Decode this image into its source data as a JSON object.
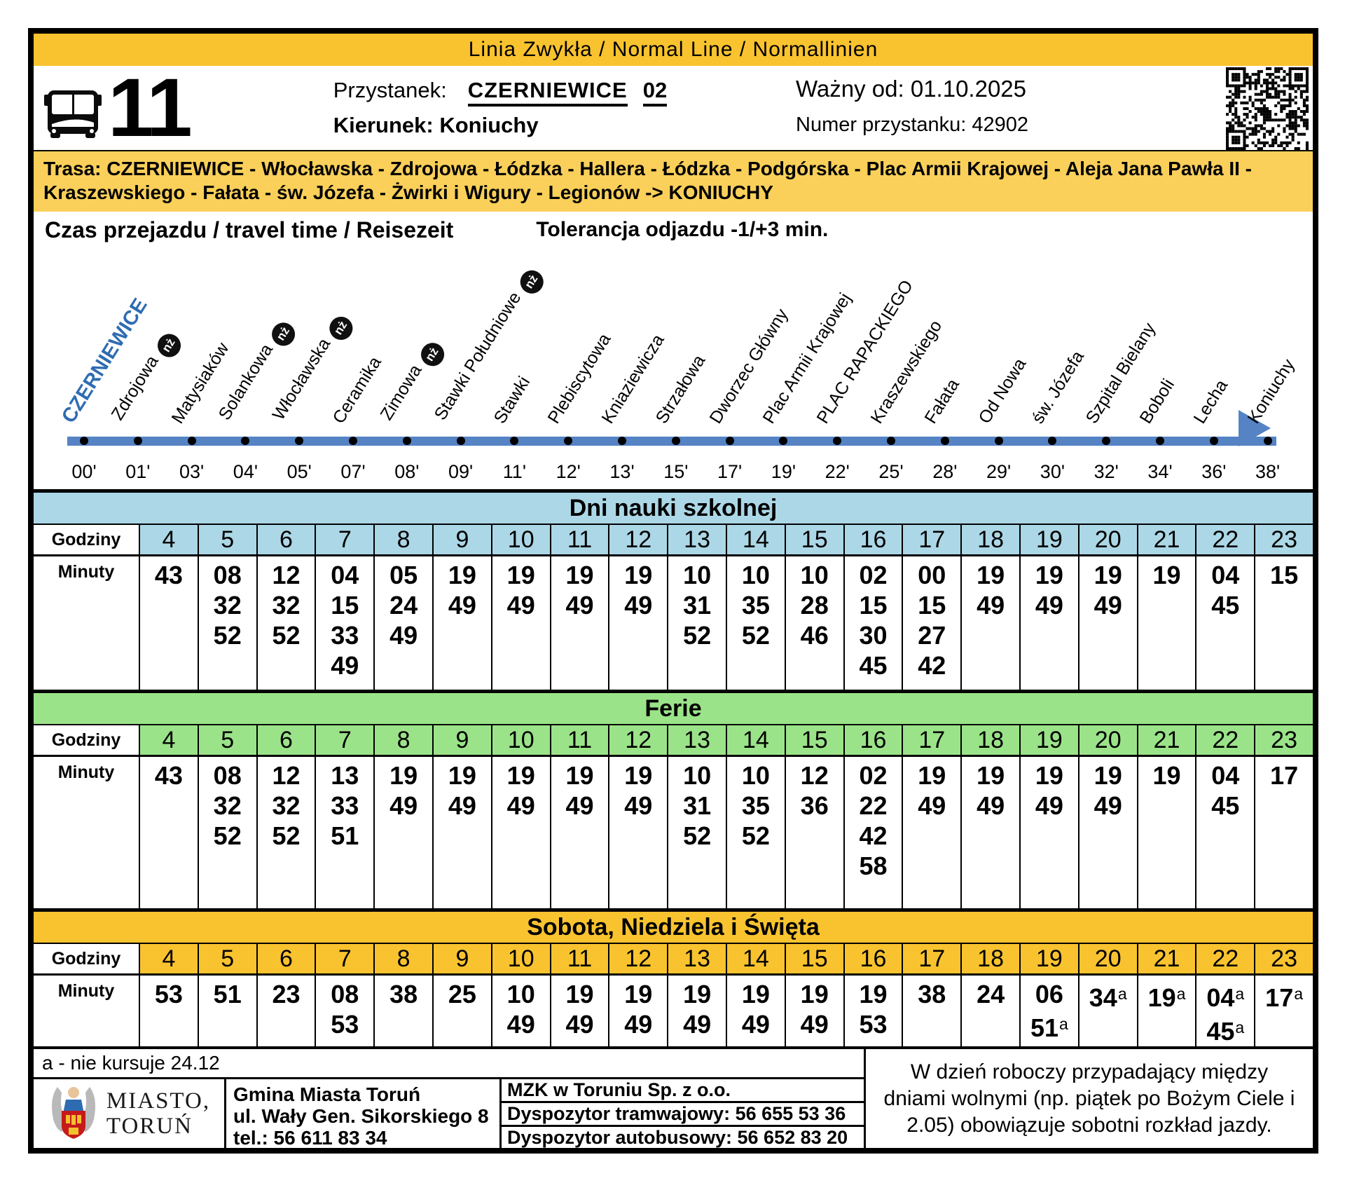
{
  "header": {
    "line_type": "Linia Zwykła  / Normal Line /  Normallinien",
    "line_number": "11",
    "stop_label": "Przystanek:",
    "stop_name": "CZERNIEWICE",
    "stop_platform": "02",
    "direction": "Kierunek: Koniuchy",
    "valid_from": "Ważny od: 01.10.2025",
    "stop_number": "Numer przystanku: 42902"
  },
  "route": {
    "text": "Trasa: CZERNIEWICE - Włocławska - Zdrojowa - Łódzka - Hallera - Łódzka - Podgórska - Plac Armii Krajowej - Aleja Jana Pawła II - Kraszewskiego - Fałata - św. Józefa - Żwirki i Wigury - Legionów -> KONIUCHY"
  },
  "diagram": {
    "title": "Czas przejazdu / travel time / Reisezeit",
    "tolerance": "Tolerancja odjazdu -1/+3 min.",
    "stops": [
      {
        "name": "CZERNIEWICE",
        "minute": "00'",
        "nz": false,
        "terminal": true
      },
      {
        "name": "Zdrojowa",
        "minute": "01'",
        "nz": true,
        "terminal": false
      },
      {
        "name": "Matysiaków",
        "minute": "03'",
        "nz": false,
        "terminal": false
      },
      {
        "name": "Solankowa",
        "minute": "04'",
        "nz": true,
        "terminal": false
      },
      {
        "name": "Włocławska",
        "minute": "05'",
        "nz": true,
        "terminal": false
      },
      {
        "name": "Ceramika",
        "minute": "07'",
        "nz": false,
        "terminal": false
      },
      {
        "name": "Zimowa",
        "minute": "08'",
        "nz": true,
        "terminal": false
      },
      {
        "name": "Stawki Południowe",
        "minute": "09'",
        "nz": true,
        "terminal": false
      },
      {
        "name": "Stawki",
        "minute": "11'",
        "nz": false,
        "terminal": false
      },
      {
        "name": "Plebiscytowa",
        "minute": "12'",
        "nz": false,
        "terminal": false
      },
      {
        "name": "Kniaziewicza",
        "minute": "13'",
        "nz": false,
        "terminal": false
      },
      {
        "name": "Strzałowa",
        "minute": "15'",
        "nz": false,
        "terminal": false
      },
      {
        "name": "Dworzec Główny",
        "minute": "17'",
        "nz": false,
        "terminal": false
      },
      {
        "name": "Plac Armii Krajowej",
        "minute": "19'",
        "nz": false,
        "terminal": false
      },
      {
        "name": "PLAC RAPACKIEGO",
        "minute": "22'",
        "nz": false,
        "terminal": false
      },
      {
        "name": "Kraszewskiego",
        "minute": "25'",
        "nz": false,
        "terminal": false
      },
      {
        "name": "Fałata",
        "minute": "28'",
        "nz": false,
        "terminal": false
      },
      {
        "name": "Od Nowa",
        "minute": "29'",
        "nz": false,
        "terminal": false
      },
      {
        "name": "św. Józefa",
        "minute": "30'",
        "nz": false,
        "terminal": false
      },
      {
        "name": "Szpital Bielany",
        "minute": "32'",
        "nz": false,
        "terminal": false
      },
      {
        "name": "Boboli",
        "minute": "34'",
        "nz": false,
        "terminal": false
      },
      {
        "name": "Lecha",
        "minute": "36'",
        "nz": false,
        "terminal": false
      },
      {
        "name": "Koniuchy",
        "minute": "38'",
        "nz": false,
        "terminal": false
      }
    ]
  },
  "tables": [
    {
      "title": "Dni nauki szkolnej",
      "color": "#acd7e6",
      "hours_label": "Godziny",
      "minutes_label": "Minuty",
      "columns": [
        {
          "hour": "4",
          "minutes": [
            "43"
          ]
        },
        {
          "hour": "5",
          "minutes": [
            "08",
            "32",
            "52"
          ]
        },
        {
          "hour": "6",
          "minutes": [
            "12",
            "32",
            "52"
          ]
        },
        {
          "hour": "7",
          "minutes": [
            "04",
            "15",
            "33",
            "49"
          ]
        },
        {
          "hour": "8",
          "minutes": [
            "05",
            "24",
            "49"
          ]
        },
        {
          "hour": "9",
          "minutes": [
            "19",
            "49"
          ]
        },
        {
          "hour": "10",
          "minutes": [
            "19",
            "49"
          ]
        },
        {
          "hour": "11",
          "minutes": [
            "19",
            "49"
          ]
        },
        {
          "hour": "12",
          "minutes": [
            "19",
            "49"
          ]
        },
        {
          "hour": "13",
          "minutes": [
            "10",
            "31",
            "52"
          ]
        },
        {
          "hour": "14",
          "minutes": [
            "10",
            "35",
            "52"
          ]
        },
        {
          "hour": "15",
          "minutes": [
            "10",
            "28",
            "46"
          ]
        },
        {
          "hour": "16",
          "minutes": [
            "02",
            "15",
            "30",
            "45"
          ]
        },
        {
          "hour": "17",
          "minutes": [
            "00",
            "15",
            "27",
            "42"
          ]
        },
        {
          "hour": "18",
          "minutes": [
            "19",
            "49"
          ]
        },
        {
          "hour": "19",
          "minutes": [
            "19",
            "49"
          ]
        },
        {
          "hour": "20",
          "minutes": [
            "19",
            "49"
          ]
        },
        {
          "hour": "21",
          "minutes": [
            "19"
          ]
        },
        {
          "hour": "22",
          "minutes": [
            "04",
            "45"
          ]
        },
        {
          "hour": "23",
          "minutes": [
            "15"
          ]
        }
      ]
    },
    {
      "title": "Ferie",
      "color": "#9be389",
      "hours_label": "Godziny",
      "minutes_label": "Minuty",
      "columns": [
        {
          "hour": "4",
          "minutes": [
            "43"
          ]
        },
        {
          "hour": "5",
          "minutes": [
            "08",
            "32",
            "52"
          ]
        },
        {
          "hour": "6",
          "minutes": [
            "12",
            "32",
            "52"
          ]
        },
        {
          "hour": "7",
          "minutes": [
            "13",
            "33",
            "51"
          ]
        },
        {
          "hour": "8",
          "minutes": [
            "19",
            "49"
          ]
        },
        {
          "hour": "9",
          "minutes": [
            "19",
            "49"
          ]
        },
        {
          "hour": "10",
          "minutes": [
            "19",
            "49"
          ]
        },
        {
          "hour": "11",
          "minutes": [
            "19",
            "49"
          ]
        },
        {
          "hour": "12",
          "minutes": [
            "19",
            "49"
          ]
        },
        {
          "hour": "13",
          "minutes": [
            "10",
            "31",
            "52"
          ]
        },
        {
          "hour": "14",
          "minutes": [
            "10",
            "35",
            "52"
          ]
        },
        {
          "hour": "15",
          "minutes": [
            "12",
            "36"
          ]
        },
        {
          "hour": "16",
          "minutes": [
            "02",
            "22",
            "42",
            "58"
          ]
        },
        {
          "hour": "17",
          "minutes": [
            "19",
            "49"
          ]
        },
        {
          "hour": "18",
          "minutes": [
            "19",
            "49"
          ]
        },
        {
          "hour": "19",
          "minutes": [
            "19",
            "49"
          ]
        },
        {
          "hour": "20",
          "minutes": [
            "19",
            "49"
          ]
        },
        {
          "hour": "21",
          "minutes": [
            "19"
          ]
        },
        {
          "hour": "22",
          "minutes": [
            "04",
            "45"
          ]
        },
        {
          "hour": "23",
          "minutes": [
            "17"
          ]
        }
      ]
    },
    {
      "title": "Sobota, Niedziela i Święta",
      "color": "#f9c32f",
      "hours_label": "Godziny",
      "minutes_label": "Minuty",
      "columns": [
        {
          "hour": "4",
          "minutes": [
            "53"
          ]
        },
        {
          "hour": "5",
          "minutes": [
            "51"
          ]
        },
        {
          "hour": "6",
          "minutes": [
            "23"
          ]
        },
        {
          "hour": "7",
          "minutes": [
            "08",
            "53"
          ]
        },
        {
          "hour": "8",
          "minutes": [
            "38"
          ]
        },
        {
          "hour": "9",
          "minutes": [
            "25"
          ]
        },
        {
          "hour": "10",
          "minutes": [
            "10",
            "49"
          ]
        },
        {
          "hour": "11",
          "minutes": [
            "19",
            "49"
          ]
        },
        {
          "hour": "12",
          "minutes": [
            "19",
            "49"
          ]
        },
        {
          "hour": "13",
          "minutes": [
            "19",
            "49"
          ]
        },
        {
          "hour": "14",
          "minutes": [
            "19",
            "49"
          ]
        },
        {
          "hour": "15",
          "minutes": [
            "19",
            "49"
          ]
        },
        {
          "hour": "16",
          "minutes": [
            "19",
            "53"
          ]
        },
        {
          "hour": "17",
          "minutes": [
            "38"
          ]
        },
        {
          "hour": "18",
          "minutes": [
            "24"
          ]
        },
        {
          "hour": "19",
          "minutes": [
            "06",
            "51a"
          ]
        },
        {
          "hour": "20",
          "minutes": [
            "34a"
          ]
        },
        {
          "hour": "21",
          "minutes": [
            "19a"
          ]
        },
        {
          "hour": "22",
          "minutes": [
            "04a",
            "45a"
          ]
        },
        {
          "hour": "23",
          "minutes": [
            "17a"
          ]
        }
      ]
    }
  ],
  "footnote": "a - nie kursuje 24.12",
  "footer": {
    "city_line1": "MIASTO,",
    "city_line2": "TORUŃ",
    "gmina_line1": "Gmina Miasta Toruń",
    "gmina_line2": "ul. Wały Gen. Sikorskiego 8",
    "gmina_line3": "tel.: 56 611 83 34",
    "mzk_line1": "MZK w Toruniu Sp. z o.o.",
    "mzk_line2": "Dyspozytor tramwajowy: 56 655 53 36",
    "mzk_line3": "Dyspozytor autobusowy: 56 652 83 20",
    "note": "W dzień roboczy przypadający między dniami wolnymi (np. piątek po Bożym Ciele i 2.05) obowiązuje sobotni rozkład jazdy."
  },
  "colors": {
    "yellow_bar": "#f9c32f",
    "route_bar": "#fad05a",
    "school_header": "#acd7e6",
    "holiday_header": "#9be389",
    "weekend_header": "#f9c32f",
    "timeline_arrow": "#5583c4",
    "terminal_stop_text": "#2e6cb2"
  }
}
